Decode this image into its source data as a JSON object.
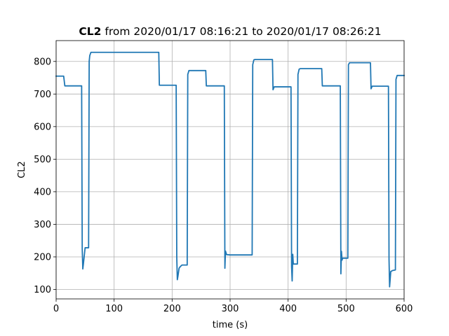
{
  "chart_data": {
    "type": "line",
    "title_bold": "CL2",
    "title_rest": " from 2020/01/17 08:16:21 to 2020/01/17 08:26:21",
    "xlabel": "time (s)",
    "ylabel": "CL2",
    "xlim": [
      0,
      600
    ],
    "ylim": [
      71,
      864
    ],
    "xticks": [
      0,
      100,
      200,
      300,
      400,
      500,
      600
    ],
    "yticks": [
      100,
      200,
      300,
      400,
      500,
      600,
      700,
      800
    ],
    "grid": true,
    "series": [
      {
        "color": "#1f77b4",
        "x": [
          0,
          13,
          15,
          44,
          45,
          46,
          47,
          50,
          56,
          57,
          58,
          60,
          177,
          178,
          207,
          208,
          209,
          210,
          212,
          214,
          217,
          226,
          227,
          229,
          258,
          259,
          290,
          291,
          292,
          294,
          300,
          338,
          339,
          341,
          343,
          373,
          374,
          376,
          405,
          406,
          407,
          408,
          409,
          410,
          413,
          416,
          417,
          419,
          421,
          425,
          458,
          459,
          490,
          491,
          492,
          493,
          494,
          496,
          503,
          504,
          506,
          542,
          543,
          545,
          573,
          574,
          575,
          577,
          580,
          585,
          586,
          588,
          590,
          600
        ],
        "y": [
          755,
          755,
          725,
          725,
          225,
          163,
          178,
          228,
          228,
          800,
          818,
          828,
          828,
          727,
          727,
          200,
          130,
          140,
          165,
          170,
          175,
          175,
          760,
          772,
          772,
          725,
          725,
          165,
          218,
          207,
          206,
          206,
          790,
          805,
          806,
          806,
          713,
          722,
          722,
          170,
          126,
          208,
          178,
          178,
          178,
          178,
          760,
          776,
          778,
          778,
          778,
          725,
          725,
          148,
          217,
          190,
          196,
          196,
          196,
          790,
          796,
          796,
          716,
          724,
          724,
          193,
          108,
          155,
          158,
          160,
          745,
          757,
          757,
          757
        ]
      }
    ]
  }
}
